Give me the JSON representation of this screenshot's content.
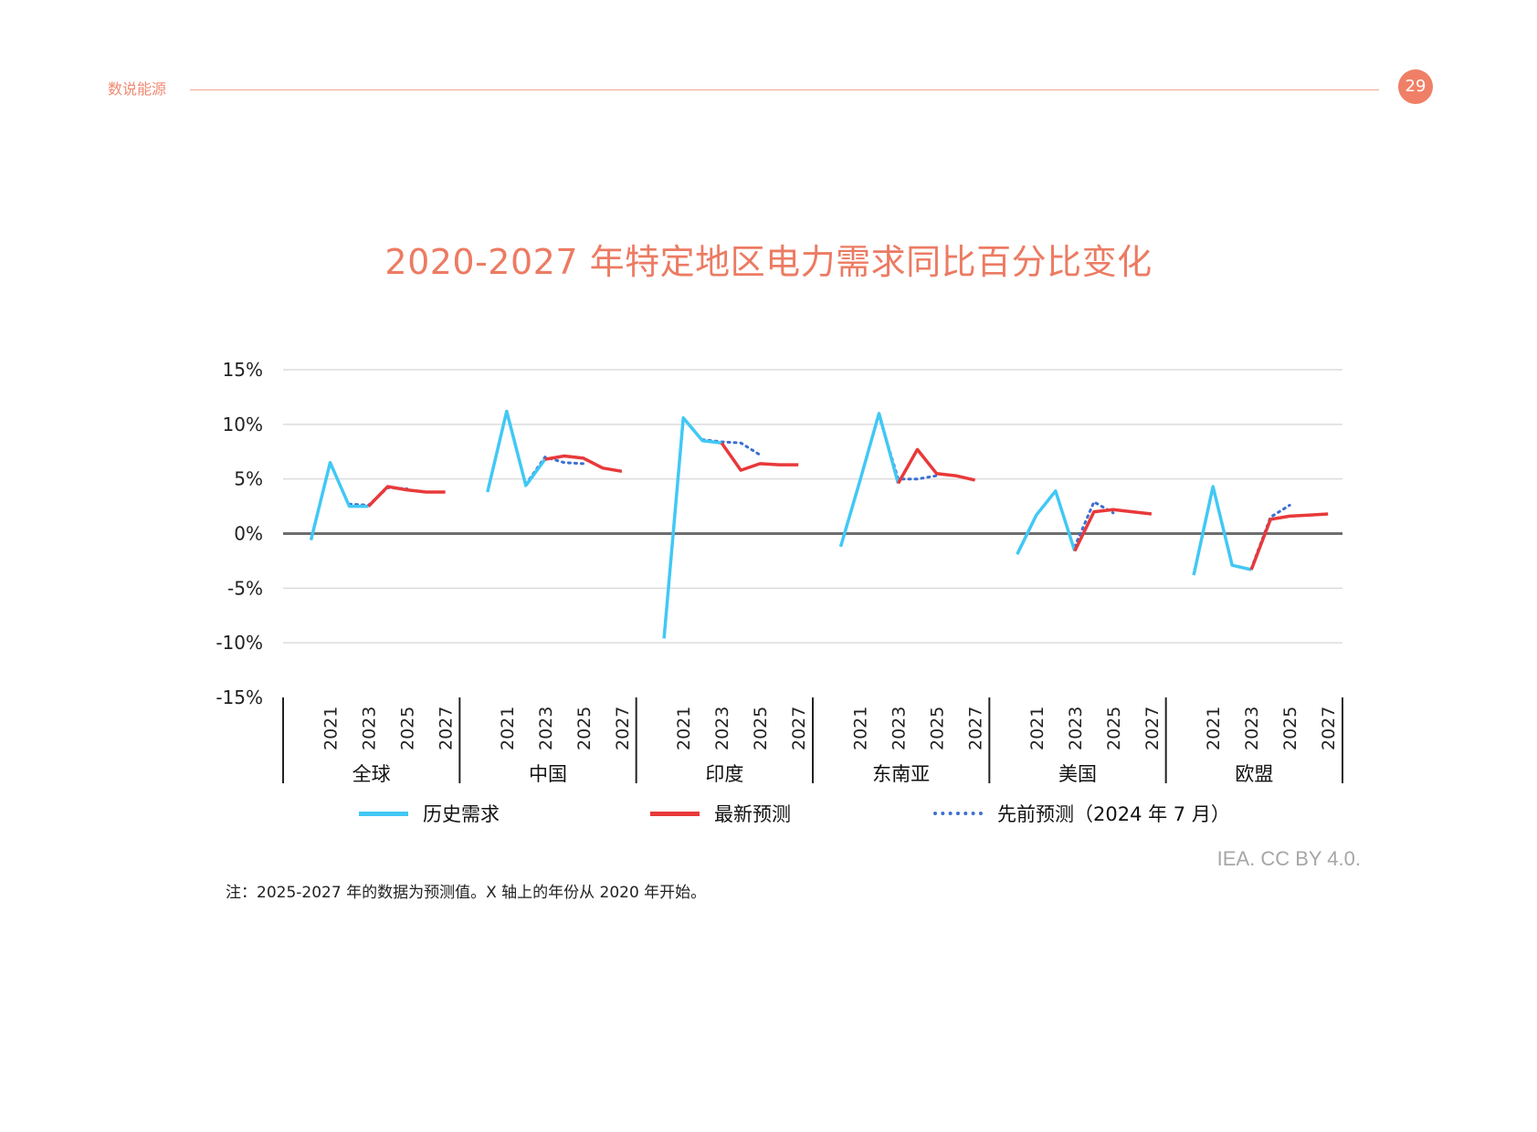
{
  "header": {
    "section": "数说能源",
    "page_number": "29"
  },
  "chart_data": {
    "type": "line",
    "title": "2020-2027 年特定地区电力需求同比百分比变化",
    "xlabel": "",
    "ylabel": "",
    "ylim": [
      -15,
      15
    ],
    "yticks": [
      15,
      10,
      5,
      0,
      -5,
      -10,
      -15
    ],
    "ytick_labels": [
      "15%",
      "10%",
      "5%",
      "0%",
      "-5%",
      "-10%",
      "-15%"
    ],
    "year_tick_labels": [
      "2021",
      "2023",
      "2025",
      "2027"
    ],
    "years": [
      2020,
      2021,
      2022,
      2023,
      2024,
      2025,
      2026,
      2027
    ],
    "grid": true,
    "colors": {
      "history": "#41c8f5",
      "latest": "#e8393a",
      "previous": "#3c6fd1",
      "zero_line": "#6e6e6e",
      "grid": "#dcdcdc"
    },
    "groups": [
      {
        "name": "全球",
        "history": [
          [
            2020,
            -0.6
          ],
          [
            2021,
            6.5
          ],
          [
            2022,
            2.5
          ],
          [
            2023,
            2.5
          ]
        ],
        "latest": [
          [
            2023,
            2.5
          ],
          [
            2024,
            4.3
          ],
          [
            2025,
            4.0
          ],
          [
            2026,
            3.8
          ],
          [
            2027,
            3.8
          ]
        ],
        "previous": [
          [
            2022,
            2.7
          ],
          [
            2023,
            2.6
          ],
          [
            2024,
            4.2
          ],
          [
            2025,
            4.1
          ]
        ]
      },
      {
        "name": "中国",
        "history": [
          [
            2020,
            3.8
          ],
          [
            2021,
            11.2
          ],
          [
            2022,
            4.4
          ],
          [
            2023,
            6.8
          ]
        ],
        "latest": [
          [
            2023,
            6.8
          ],
          [
            2024,
            7.1
          ],
          [
            2025,
            6.9
          ],
          [
            2026,
            6.0
          ],
          [
            2027,
            5.7
          ]
        ],
        "previous": [
          [
            2022,
            4.5
          ],
          [
            2023,
            7.0
          ],
          [
            2024,
            6.5
          ],
          [
            2025,
            6.4
          ]
        ]
      },
      {
        "name": "印度",
        "history": [
          [
            2020,
            -9.6
          ],
          [
            2021,
            10.6
          ],
          [
            2022,
            8.5
          ],
          [
            2023,
            8.3
          ]
        ],
        "latest": [
          [
            2023,
            8.3
          ],
          [
            2024,
            5.8
          ],
          [
            2025,
            6.4
          ],
          [
            2026,
            6.3
          ],
          [
            2027,
            6.3
          ]
        ],
        "previous": [
          [
            2022,
            8.6
          ],
          [
            2023,
            8.4
          ],
          [
            2024,
            8.3
          ],
          [
            2025,
            7.2
          ]
        ]
      },
      {
        "name": "东南亚",
        "history": [
          [
            2020,
            -1.2
          ],
          [
            2021,
            4.8
          ],
          [
            2022,
            11.0
          ],
          [
            2023,
            4.6
          ]
        ],
        "latest": [
          [
            2023,
            4.6
          ],
          [
            2024,
            7.7
          ],
          [
            2025,
            5.5
          ],
          [
            2026,
            5.3
          ],
          [
            2027,
            4.9
          ]
        ],
        "previous": [
          [
            2022,
            10.8
          ],
          [
            2023,
            5.0
          ],
          [
            2024,
            5.0
          ],
          [
            2025,
            5.3
          ]
        ]
      },
      {
        "name": "美国",
        "history": [
          [
            2020,
            -1.9
          ],
          [
            2021,
            1.7
          ],
          [
            2022,
            3.9
          ],
          [
            2023,
            -1.6
          ]
        ],
        "latest": [
          [
            2023,
            -1.6
          ],
          [
            2024,
            2.0
          ],
          [
            2025,
            2.2
          ],
          [
            2026,
            2.0
          ],
          [
            2027,
            1.8
          ]
        ],
        "previous": [
          [
            2023,
            -1.2
          ],
          [
            2024,
            2.9
          ],
          [
            2025,
            1.9
          ]
        ]
      },
      {
        "name": "欧盟",
        "history": [
          [
            2020,
            -3.8
          ],
          [
            2021,
            4.3
          ],
          [
            2022,
            -2.9
          ],
          [
            2023,
            -3.3
          ]
        ],
        "latest": [
          [
            2023,
            -3.3
          ],
          [
            2024,
            1.3
          ],
          [
            2025,
            1.6
          ],
          [
            2026,
            1.7
          ],
          [
            2027,
            1.8
          ]
        ],
        "previous": [
          [
            2023,
            -3.2
          ],
          [
            2024,
            1.5
          ],
          [
            2025,
            2.6
          ]
        ]
      }
    ],
    "legend": {
      "position": "bottom",
      "items": [
        {
          "key": "history",
          "label": "历史需求"
        },
        {
          "key": "latest",
          "label": "最新预测"
        },
        {
          "key": "previous",
          "label": "先前预测（2024 年 7 月）"
        }
      ]
    }
  },
  "source": "IEA. CC BY 4.0.",
  "note": "注：2025-2027 年的数据为预测值。X 轴上的年份从 2020 年开始。"
}
